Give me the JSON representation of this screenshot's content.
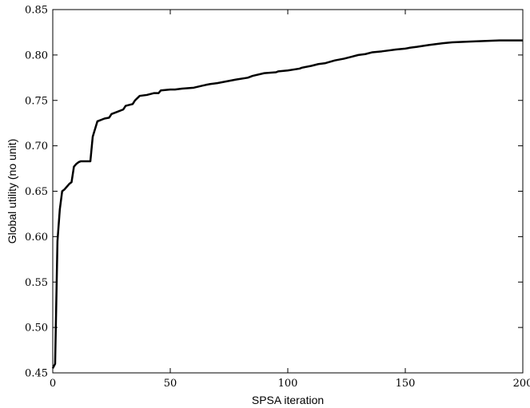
{
  "chart_data": {
    "type": "line",
    "title": "",
    "xlabel": "SPSA iteration",
    "ylabel": "Global utility (no unit)",
    "xlim": [
      0,
      200
    ],
    "ylim": [
      0.45,
      0.85
    ],
    "grid": false,
    "line_color": "#000000",
    "x_ticks": [
      {
        "value": 0,
        "label": "0"
      },
      {
        "value": 50,
        "label": "50"
      },
      {
        "value": 100,
        "label": "100"
      },
      {
        "value": 150,
        "label": "150"
      },
      {
        "value": 200,
        "label": "200"
      }
    ],
    "y_ticks": [
      {
        "value": 0.45,
        "label": "0.45"
      },
      {
        "value": 0.5,
        "label": "0.50"
      },
      {
        "value": 0.55,
        "label": "0.55"
      },
      {
        "value": 0.6,
        "label": "0.60"
      },
      {
        "value": 0.65,
        "label": "0.65"
      },
      {
        "value": 0.7,
        "label": "0.70"
      },
      {
        "value": 0.75,
        "label": "0.75"
      },
      {
        "value": 0.8,
        "label": "0.80"
      },
      {
        "value": 0.85,
        "label": "0.85"
      }
    ],
    "series": [
      {
        "x": [
          0,
          1,
          2,
          3,
          4,
          5,
          6,
          7,
          8,
          9,
          10,
          11,
          12,
          16,
          17,
          19,
          20,
          22,
          24,
          25,
          27,
          30,
          31,
          34,
          35,
          37,
          40,
          43,
          45,
          46,
          50,
          52,
          55,
          60,
          65,
          67,
          70,
          76,
          78,
          83,
          85,
          90,
          95,
          96,
          100,
          105,
          106,
          110,
          113,
          116,
          120,
          124,
          127,
          130,
          133,
          136,
          140,
          143,
          146,
          150,
          152,
          155,
          160,
          163,
          166,
          170,
          180,
          190,
          200
        ],
        "y": [
          0.455,
          0.46,
          0.595,
          0.63,
          0.65,
          0.652,
          0.655,
          0.658,
          0.66,
          0.677,
          0.68,
          0.682,
          0.683,
          0.683,
          0.71,
          0.727,
          0.728,
          0.73,
          0.731,
          0.735,
          0.737,
          0.74,
          0.744,
          0.746,
          0.75,
          0.755,
          0.756,
          0.758,
          0.758,
          0.761,
          0.762,
          0.762,
          0.763,
          0.764,
          0.767,
          0.768,
          0.769,
          0.772,
          0.773,
          0.775,
          0.777,
          0.78,
          0.781,
          0.782,
          0.783,
          0.785,
          0.786,
          0.788,
          0.79,
          0.791,
          0.794,
          0.796,
          0.798,
          0.8,
          0.801,
          0.803,
          0.804,
          0.805,
          0.806,
          0.807,
          0.808,
          0.809,
          0.811,
          0.812,
          0.813,
          0.814,
          0.815,
          0.816,
          0.816
        ]
      }
    ]
  }
}
